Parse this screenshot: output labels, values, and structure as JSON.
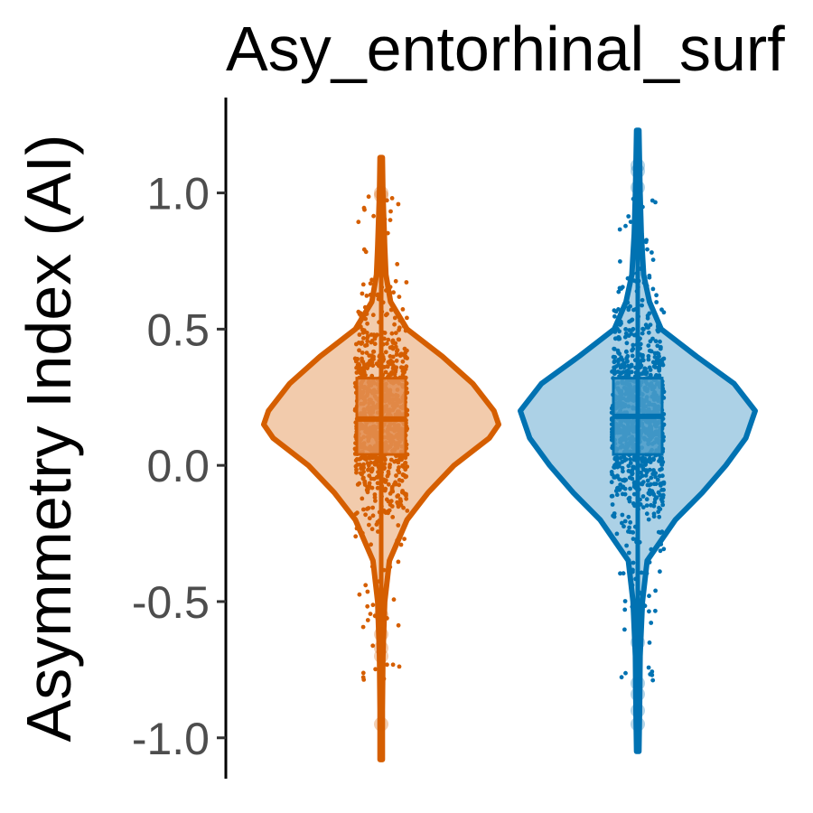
{
  "chart_data": {
    "type": "violin",
    "title": "Asy_entorhinal_surf",
    "xlabel": "",
    "ylabel": "Asymmetry Index (AI)",
    "ylim": [
      -1.15,
      1.35
    ],
    "y_ticks": [
      1.0,
      0.5,
      0.0,
      -0.5,
      -1.0
    ],
    "y_tick_labels": [
      "1.0",
      "0.5",
      "0.0",
      "-0.5",
      "-1.0"
    ],
    "grid": false,
    "legend": "none",
    "series": [
      {
        "color": "#d55e00",
        "fill": "#f2cbac",
        "box_fill": "#e38f52",
        "median": 0.17,
        "q1": 0.04,
        "q3": 0.32,
        "min": -1.08,
        "max": 1.13,
        "density": [
          [
            -1.08,
            0.01
          ],
          [
            -0.9,
            0.01
          ],
          [
            -0.7,
            0.015
          ],
          [
            -0.5,
            0.03
          ],
          [
            -0.35,
            0.07
          ],
          [
            -0.2,
            0.22
          ],
          [
            -0.1,
            0.4
          ],
          [
            0.0,
            0.62
          ],
          [
            0.1,
            0.92
          ],
          [
            0.15,
            1.0
          ],
          [
            0.2,
            0.96
          ],
          [
            0.3,
            0.78
          ],
          [
            0.4,
            0.52
          ],
          [
            0.5,
            0.22
          ],
          [
            0.6,
            0.08
          ],
          [
            0.7,
            0.04
          ],
          [
            0.8,
            0.03
          ],
          [
            1.0,
            0.015
          ],
          [
            1.13,
            0.01
          ]
        ],
        "outliers": [
          1.0,
          0.99,
          -0.55,
          -0.62,
          -0.67,
          -0.7,
          -0.95
        ]
      },
      {
        "color": "#0072b2",
        "fill": "#acd1e6",
        "box_fill": "#4a9cc9",
        "median": 0.18,
        "q1": 0.04,
        "q3": 0.32,
        "min": -1.05,
        "max": 1.23,
        "density": [
          [
            -1.05,
            0.01
          ],
          [
            -0.9,
            0.015
          ],
          [
            -0.7,
            0.02
          ],
          [
            -0.5,
            0.04
          ],
          [
            -0.35,
            0.08
          ],
          [
            -0.2,
            0.32
          ],
          [
            -0.1,
            0.55
          ],
          [
            0.0,
            0.75
          ],
          [
            0.1,
            0.92
          ],
          [
            0.2,
            1.0
          ],
          [
            0.3,
            0.82
          ],
          [
            0.4,
            0.5
          ],
          [
            0.5,
            0.2
          ],
          [
            0.6,
            0.1
          ],
          [
            0.7,
            0.05
          ],
          [
            0.85,
            0.03
          ],
          [
            1.0,
            0.02
          ],
          [
            1.1,
            0.015
          ],
          [
            1.23,
            0.01
          ]
        ],
        "outliers": [
          1.1,
          1.08,
          1.02,
          -0.8,
          -0.84,
          -0.9,
          -0.95,
          -0.65
        ]
      }
    ]
  }
}
